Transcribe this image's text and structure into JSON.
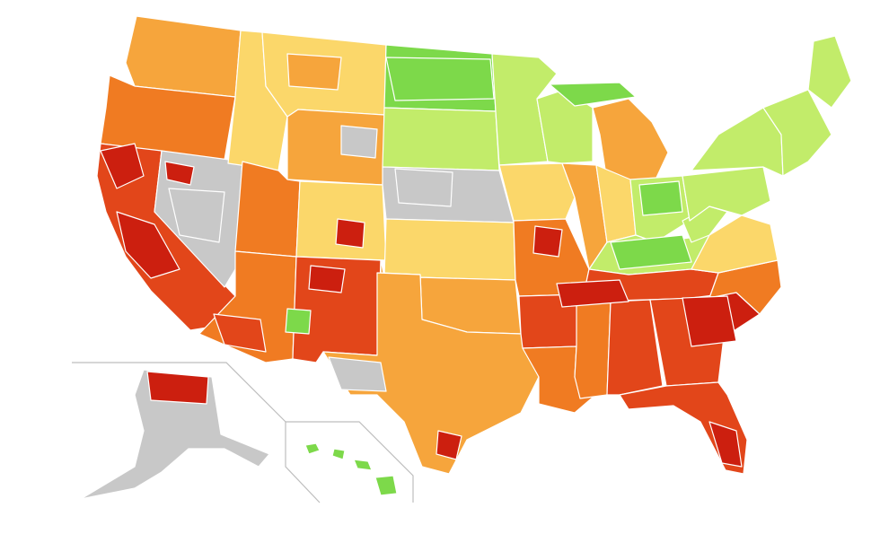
{
  "map": {
    "palette": {
      "dark-red": "#cc1f0f",
      "red": "#e2461a",
      "orange": "#f07b22",
      "light-orange": "#f6a53c",
      "yellow": "#fbd76a",
      "light-yellow": "#f4f08a",
      "light-green": "#c2ec6a",
      "green": "#7dd94a",
      "gray": "#c8c8c8"
    },
    "regions": [
      {
        "name": "washington",
        "color": "light-orange"
      },
      {
        "name": "oregon",
        "color": "orange"
      },
      {
        "name": "california",
        "color": "red"
      },
      {
        "name": "nevada",
        "color": "gray"
      },
      {
        "name": "idaho",
        "color": "yellow"
      },
      {
        "name": "montana",
        "color": "yellow"
      },
      {
        "name": "wyoming",
        "color": "light-orange"
      },
      {
        "name": "utah",
        "color": "orange"
      },
      {
        "name": "arizona",
        "color": "orange"
      },
      {
        "name": "colorado",
        "color": "yellow"
      },
      {
        "name": "new-mexico",
        "color": "red"
      },
      {
        "name": "north-dakota",
        "color": "green"
      },
      {
        "name": "south-dakota",
        "color": "light-green"
      },
      {
        "name": "nebraska",
        "color": "gray"
      },
      {
        "name": "kansas",
        "color": "yellow"
      },
      {
        "name": "oklahoma",
        "color": "light-orange"
      },
      {
        "name": "texas",
        "color": "light-orange"
      },
      {
        "name": "minnesota",
        "color": "light-green"
      },
      {
        "name": "iowa",
        "color": "yellow"
      },
      {
        "name": "missouri",
        "color": "orange"
      },
      {
        "name": "arkansas",
        "color": "red"
      },
      {
        "name": "louisiana",
        "color": "orange"
      },
      {
        "name": "wisconsin",
        "color": "light-green"
      },
      {
        "name": "illinois",
        "color": "light-orange"
      },
      {
        "name": "michigan",
        "color": "light-orange"
      },
      {
        "name": "indiana",
        "color": "yellow"
      },
      {
        "name": "ohio",
        "color": "light-green"
      },
      {
        "name": "kentucky",
        "color": "light-green"
      },
      {
        "name": "tennessee",
        "color": "red"
      },
      {
        "name": "mississippi",
        "color": "orange"
      },
      {
        "name": "alabama",
        "color": "red"
      },
      {
        "name": "georgia",
        "color": "red"
      },
      {
        "name": "florida",
        "color": "red"
      },
      {
        "name": "south-carolina",
        "color": "dark-red"
      },
      {
        "name": "north-carolina",
        "color": "orange"
      },
      {
        "name": "virginia",
        "color": "yellow"
      },
      {
        "name": "west-virginia",
        "color": "light-green"
      },
      {
        "name": "pennsylvania",
        "color": "light-green"
      },
      {
        "name": "new-york",
        "color": "light-green"
      },
      {
        "name": "new-england",
        "color": "light-green"
      },
      {
        "name": "maine",
        "color": "light-green"
      },
      {
        "name": "alaska",
        "color": "gray"
      },
      {
        "name": "hawaii",
        "color": "green"
      }
    ],
    "hotspots": [
      {
        "name": "hotspot-ca-north",
        "color": "dark-red"
      },
      {
        "name": "hotspot-ca-central",
        "color": "dark-red"
      },
      {
        "name": "hotspot-ne-nevada",
        "color": "dark-red"
      },
      {
        "name": "hotspot-colorado",
        "color": "dark-red"
      },
      {
        "name": "hotspot-new-mexico",
        "color": "dark-red"
      },
      {
        "name": "hotspot-missouri",
        "color": "dark-red"
      },
      {
        "name": "hotspot-tennessee",
        "color": "dark-red"
      },
      {
        "name": "hotspot-georgia",
        "color": "dark-red"
      },
      {
        "name": "hotspot-florida",
        "color": "dark-red"
      },
      {
        "name": "hotspot-texas-south",
        "color": "dark-red"
      },
      {
        "name": "hotspot-alaska-north",
        "color": "dark-red"
      },
      {
        "name": "hotspot-kentucky",
        "color": "green"
      },
      {
        "name": "hotspot-ohio",
        "color": "green"
      },
      {
        "name": "hotspot-michigan-up",
        "color": "green"
      },
      {
        "name": "hotspot-nd-east",
        "color": "green"
      },
      {
        "name": "hotspot-nebraska",
        "color": "gray"
      },
      {
        "name": "hotspot-texas-west",
        "color": "gray"
      },
      {
        "name": "hotspot-nevada",
        "color": "gray"
      },
      {
        "name": "hotspot-wyoming",
        "color": "gray"
      },
      {
        "name": "hotspot-new-mexico-green",
        "color": "green"
      },
      {
        "name": "hotspot-montana",
        "color": "light-orange"
      },
      {
        "name": "hotspot-arizona",
        "color": "red"
      }
    ]
  }
}
